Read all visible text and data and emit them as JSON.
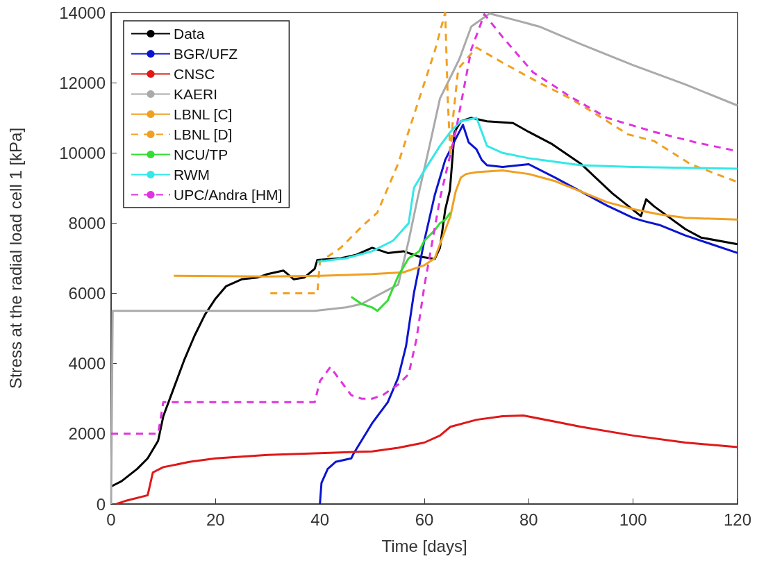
{
  "chart_data": {
    "type": "line",
    "xlabel": "Time [days]",
    "ylabel": "Stress at the radial load cell 1 [kPa]",
    "xlim": [
      0,
      120
    ],
    "xticks": [
      0,
      20,
      40,
      60,
      80,
      100,
      120
    ],
    "ylim": [
      0,
      14000
    ],
    "yticks": [
      0,
      2000,
      4000,
      6000,
      8000,
      10000,
      12000,
      14000
    ],
    "legend": "top left",
    "marker": "none",
    "series": [
      {
        "name": "Data",
        "color": "#000000",
        "x": [
          0,
          2,
          5,
          7,
          9,
          10,
          12,
          14,
          16,
          18,
          20,
          22,
          25,
          28,
          30,
          33,
          35,
          37,
          39,
          39.5,
          44,
          47,
          50,
          53,
          56,
          59,
          62,
          63,
          64,
          64.9,
          65.8,
          67,
          69,
          72,
          77,
          80,
          84.5,
          90,
          96,
          101.5,
          102.5,
          104,
          110,
          113,
          120
        ],
        "values": [
          500,
          650,
          1000,
          1300,
          1800,
          2500,
          3300,
          4100,
          4800,
          5400,
          5850,
          6200,
          6400,
          6450,
          6550,
          6650,
          6400,
          6450,
          6700,
          6950,
          7000,
          7100,
          7300,
          7150,
          7200,
          7050,
          6980,
          7300,
          8380,
          8940,
          10600,
          10900,
          11000,
          10900,
          10850,
          10600,
          10250,
          9690,
          8850,
          8200,
          8680,
          8480,
          7830,
          7590,
          7400
        ]
      },
      {
        "name": "BGR/UFZ",
        "color": "#0a14d0",
        "x": [
          40,
          40.3,
          41.5,
          43,
          46,
          46.5,
          50,
          53,
          55,
          56.5,
          58,
          60,
          62,
          64,
          66,
          67.4,
          68.5,
          70,
          71,
          72,
          75,
          80,
          85,
          90,
          95,
          100,
          102,
          105,
          110,
          115,
          120
        ],
        "values": [
          0,
          600,
          1000,
          1200,
          1300,
          1450,
          2300,
          2900,
          3600,
          4500,
          6000,
          7500,
          8800,
          9800,
          10400,
          10800,
          10300,
          10100,
          9800,
          9650,
          9600,
          9680,
          9300,
          8900,
          8500,
          8150,
          8060,
          7950,
          7650,
          7400,
          7150
        ]
      },
      {
        "name": "CNSC",
        "color": "#e01818",
        "x": [
          1,
          3,
          7,
          8,
          10,
          15,
          20,
          30,
          40,
          50,
          55,
          60,
          63,
          65,
          70,
          75,
          79,
          85,
          90,
          100,
          110,
          120
        ],
        "values": [
          0,
          100,
          250,
          900,
          1050,
          1200,
          1300,
          1400,
          1450,
          1500,
          1600,
          1750,
          1950,
          2200,
          2400,
          2500,
          2520,
          2350,
          2200,
          1950,
          1750,
          1620
        ]
      },
      {
        "name": "KAERI",
        "color": "#aaaaaa",
        "x": [
          0,
          0.3,
          39,
          45,
          48,
          50.5,
          55,
          57,
          58.7,
          61,
          63,
          66.7,
          69,
          72.5,
          77,
          82,
          90,
          100,
          110,
          120
        ],
        "values": [
          0,
          5500,
          5500,
          5600,
          5700,
          5900,
          6250,
          7500,
          8700,
          10200,
          11550,
          12670,
          13600,
          13970,
          13800,
          13600,
          13100,
          12500,
          11950,
          11350
        ]
      },
      {
        "name": "LBNL [C]",
        "color": "#f0a020",
        "x": [
          12,
          30,
          40,
          50,
          56,
          60,
          62,
          64,
          65,
          66,
          67,
          68,
          70,
          75,
          80,
          85,
          90,
          95,
          100,
          105,
          110,
          120
        ],
        "values": [
          6500,
          6480,
          6500,
          6550,
          6600,
          6800,
          7000,
          7800,
          8200,
          8900,
          9300,
          9400,
          9450,
          9500,
          9400,
          9200,
          8900,
          8600,
          8400,
          8250,
          8150,
          8100
        ]
      },
      {
        "name": "LBNL [D]",
        "color": "#f0a020",
        "line_style": "dashed",
        "x": [
          30.5,
          39.5,
          40,
          44,
          48,
          51,
          55,
          58.6,
          62,
          64,
          64.5,
          65,
          65.5,
          66.5,
          70,
          75,
          82,
          88,
          94,
          99,
          104,
          111,
          120
        ],
        "values": [
          6000,
          6000,
          6900,
          7300,
          7900,
          8300,
          9700,
          11350,
          12900,
          14000,
          11500,
          9900,
          11000,
          12400,
          13000,
          12570,
          12000,
          11550,
          11000,
          10530,
          10340,
          9680,
          9170
        ]
      },
      {
        "name": "NCU/TP",
        "color": "#33dd33",
        "x": [
          46,
          48,
          50,
          51,
          53,
          55,
          57,
          59,
          60,
          62,
          63,
          64,
          65
        ],
        "values": [
          5900,
          5700,
          5600,
          5500,
          5800,
          6500,
          7000,
          7200,
          7500,
          7800,
          8000,
          8100,
          8300
        ]
      },
      {
        "name": "RWM",
        "color": "#33e8e8",
        "x": [
          39.5,
          45,
          50,
          54,
          57,
          58,
          60,
          63,
          65,
          67,
          70,
          71,
          72,
          75,
          80,
          90,
          100,
          120
        ],
        "values": [
          6900,
          7000,
          7200,
          7500,
          8000,
          9000,
          9500,
          10200,
          10600,
          10900,
          11000,
          10600,
          10200,
          10000,
          9850,
          9650,
          9600,
          9550
        ]
      },
      {
        "name": "UPC/Andra [HM]",
        "color": "#e033e0",
        "line_style": "dashed",
        "x": [
          0,
          9,
          10,
          39,
          40,
          42,
          44,
          46,
          48,
          50,
          52,
          55,
          57,
          58.5,
          60,
          63,
          66,
          69,
          71.5,
          75,
          80.8,
          88,
          95,
          104,
          112,
          120
        ],
        "values": [
          2000,
          2000,
          2900,
          2900,
          3500,
          3900,
          3500,
          3100,
          3000,
          3000,
          3100,
          3400,
          3700,
          4700,
          6200,
          8700,
          10600,
          12950,
          13950,
          13300,
          12300,
          11600,
          11000,
          10600,
          10300,
          10050
        ]
      }
    ]
  }
}
